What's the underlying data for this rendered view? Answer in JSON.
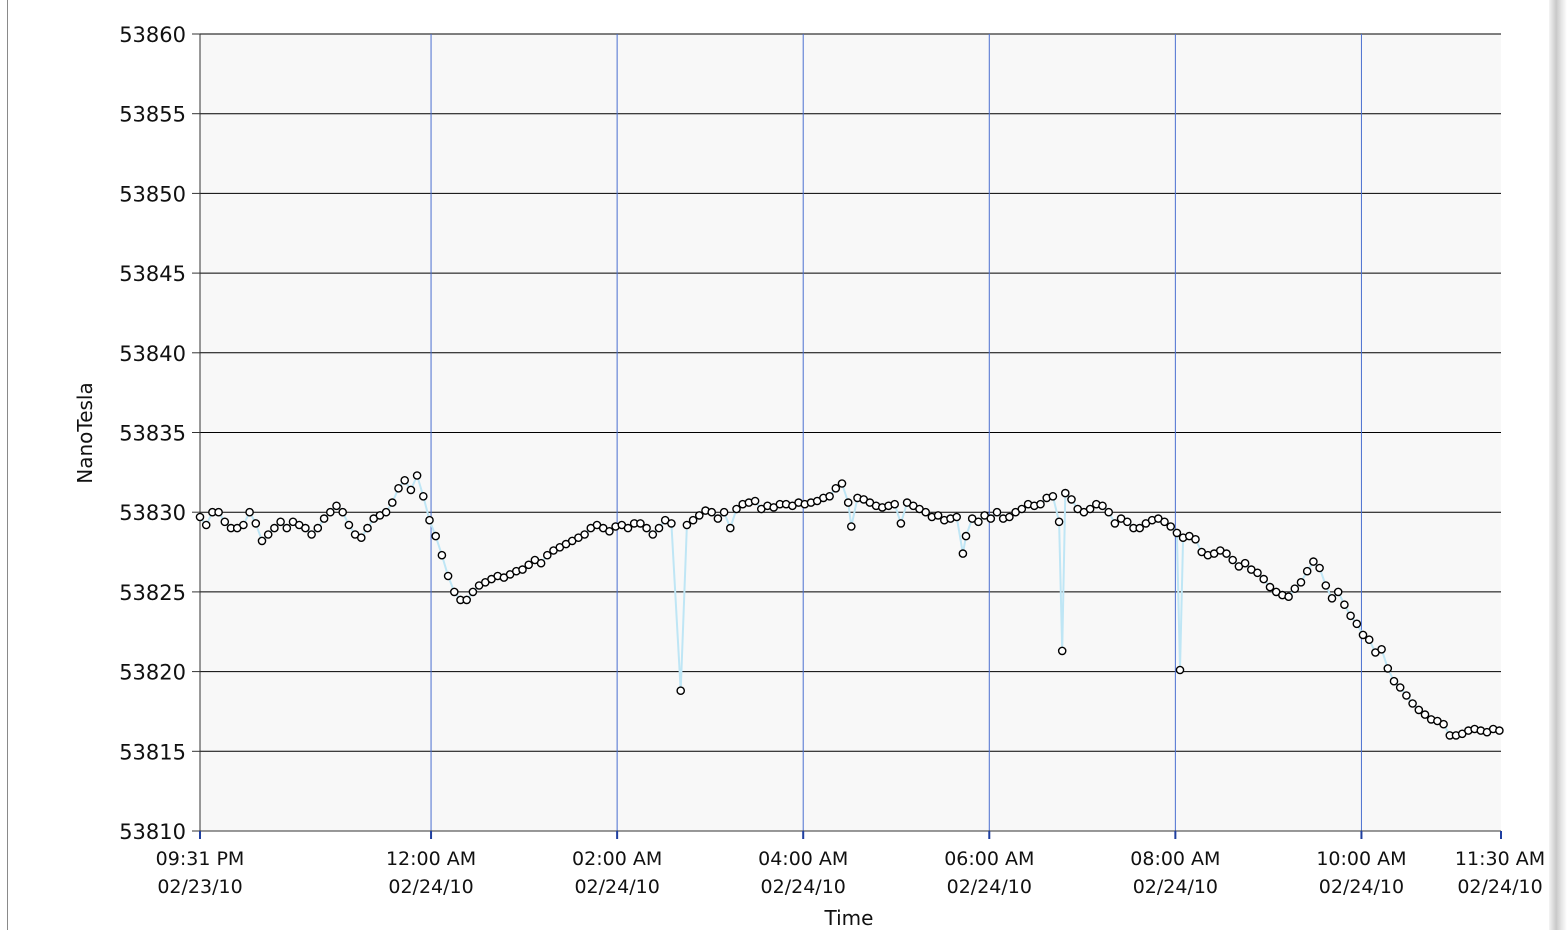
{
  "chart_data": {
    "type": "scatter",
    "title": "",
    "xlabel": "Time",
    "ylabel": "NanoTesla",
    "ylim": [
      53810,
      53860
    ],
    "y_ticks": [
      "53860",
      "53855",
      "53850",
      "53845",
      "53840",
      "53835",
      "53830",
      "53825",
      "53820",
      "53815",
      "53810"
    ],
    "xlim": [
      "2010-02-23 21:31",
      "2010-02-24 11:30"
    ],
    "x_ticks": [
      {
        "time": "2010-02-23 21:31",
        "label1": "09:31 PM",
        "label2": "02/23/10"
      },
      {
        "time": "2010-02-24 00:00",
        "label1": "12:00 AM",
        "label2": "02/24/10"
      },
      {
        "time": "2010-02-24 02:00",
        "label1": "02:00 AM",
        "label2": "02/24/10"
      },
      {
        "time": "2010-02-24 04:00",
        "label1": "04:00 AM",
        "label2": "02/24/10"
      },
      {
        "time": "2010-02-24 06:00",
        "label1": "06:00 AM",
        "label2": "02/24/10"
      },
      {
        "time": "2010-02-24 08:00",
        "label1": "08:00 AM",
        "label2": "02/24/10"
      },
      {
        "time": "2010-02-24 10:00",
        "label1": "10:00 AM",
        "label2": "02/24/10"
      },
      {
        "time": "2010-02-24 11:30",
        "label1": "11:30 AM",
        "label2": "02/24/10"
      }
    ],
    "grid": true,
    "colors": {
      "marker_edge": "#000000",
      "line": "#bfe6f5",
      "vgrid": "#4a6fd0",
      "hgrid": "#000000",
      "plot_bg": "#f8f8f8"
    },
    "series": [
      {
        "points": [
          [
            "2010-02-23 21:31",
            53829.7
          ],
          [
            "2010-02-23 21:35",
            53829.2
          ],
          [
            "2010-02-23 21:39",
            53830.0
          ],
          [
            "2010-02-23 21:43",
            53830.0
          ],
          [
            "2010-02-23 21:47",
            53829.4
          ],
          [
            "2010-02-23 21:51",
            53829.0
          ],
          [
            "2010-02-23 21:55",
            53829.0
          ],
          [
            "2010-02-23 21:59",
            53829.2
          ],
          [
            "2010-02-23 22:03",
            53830.0
          ],
          [
            "2010-02-23 22:07",
            53829.3
          ],
          [
            "2010-02-23 22:11",
            53828.2
          ],
          [
            "2010-02-23 22:15",
            53828.6
          ],
          [
            "2010-02-23 22:19",
            53829.0
          ],
          [
            "2010-02-23 22:23",
            53829.4
          ],
          [
            "2010-02-23 22:27",
            53829.0
          ],
          [
            "2010-02-23 22:31",
            53829.4
          ],
          [
            "2010-02-23 22:35",
            53829.2
          ],
          [
            "2010-02-23 22:39",
            53829.0
          ],
          [
            "2010-02-23 22:43",
            53828.6
          ],
          [
            "2010-02-23 22:47",
            53829.0
          ],
          [
            "2010-02-23 22:51",
            53829.6
          ],
          [
            "2010-02-23 22:55",
            53830.0
          ],
          [
            "2010-02-23 22:59",
            53830.4
          ],
          [
            "2010-02-23 23:03",
            53830.0
          ],
          [
            "2010-02-23 23:07",
            53829.2
          ],
          [
            "2010-02-23 23:11",
            53828.6
          ],
          [
            "2010-02-23 23:15",
            53828.4
          ],
          [
            "2010-02-23 23:19",
            53829.0
          ],
          [
            "2010-02-23 23:23",
            53829.6
          ],
          [
            "2010-02-23 23:27",
            53829.8
          ],
          [
            "2010-02-23 23:31",
            53830.0
          ],
          [
            "2010-02-23 23:35",
            53830.6
          ],
          [
            "2010-02-23 23:39",
            53831.5
          ],
          [
            "2010-02-23 23:43",
            53832.0
          ],
          [
            "2010-02-23 23:47",
            53831.4
          ],
          [
            "2010-02-23 23:51",
            53832.3
          ],
          [
            "2010-02-23 23:55",
            53831.0
          ],
          [
            "2010-02-23 23:59",
            53829.5
          ],
          [
            "2010-02-24 00:03",
            53828.5
          ],
          [
            "2010-02-24 00:07",
            53827.3
          ],
          [
            "2010-02-24 00:11",
            53826.0
          ],
          [
            "2010-02-24 00:15",
            53825.0
          ],
          [
            "2010-02-24 00:19",
            53824.5
          ],
          [
            "2010-02-24 00:23",
            53824.5
          ],
          [
            "2010-02-24 00:27",
            53825.0
          ],
          [
            "2010-02-24 00:31",
            53825.4
          ],
          [
            "2010-02-24 00:35",
            53825.6
          ],
          [
            "2010-02-24 00:39",
            53825.8
          ],
          [
            "2010-02-24 00:43",
            53826.0
          ],
          [
            "2010-02-24 00:47",
            53825.9
          ],
          [
            "2010-02-24 00:51",
            53826.1
          ],
          [
            "2010-02-24 00:55",
            53826.3
          ],
          [
            "2010-02-24 00:59",
            53826.4
          ],
          [
            "2010-02-24 01:03",
            53826.7
          ],
          [
            "2010-02-24 01:07",
            53827.0
          ],
          [
            "2010-02-24 01:11",
            53826.8
          ],
          [
            "2010-02-24 01:15",
            53827.3
          ],
          [
            "2010-02-24 01:19",
            53827.6
          ],
          [
            "2010-02-24 01:23",
            53827.8
          ],
          [
            "2010-02-24 01:27",
            53828.0
          ],
          [
            "2010-02-24 01:31",
            53828.2
          ],
          [
            "2010-02-24 01:35",
            53828.4
          ],
          [
            "2010-02-24 01:39",
            53828.6
          ],
          [
            "2010-02-24 01:43",
            53829.0
          ],
          [
            "2010-02-24 01:47",
            53829.2
          ],
          [
            "2010-02-24 01:51",
            53829.0
          ],
          [
            "2010-02-24 01:55",
            53828.8
          ],
          [
            "2010-02-24 01:59",
            53829.1
          ],
          [
            "2010-02-24 02:03",
            53829.2
          ],
          [
            "2010-02-24 02:07",
            53829.0
          ],
          [
            "2010-02-24 02:11",
            53829.3
          ],
          [
            "2010-02-24 02:15",
            53829.3
          ],
          [
            "2010-02-24 02:19",
            53829.0
          ],
          [
            "2010-02-24 02:23",
            53828.6
          ],
          [
            "2010-02-24 02:27",
            53829.0
          ],
          [
            "2010-02-24 02:31",
            53829.5
          ],
          [
            "2010-02-24 02:35",
            53829.3
          ],
          [
            "2010-02-24 02:41",
            53818.8
          ],
          [
            "2010-02-24 02:45",
            53829.2
          ],
          [
            "2010-02-24 02:49",
            53829.5
          ],
          [
            "2010-02-24 02:53",
            53829.8
          ],
          [
            "2010-02-24 02:57",
            53830.1
          ],
          [
            "2010-02-24 03:01",
            53830.0
          ],
          [
            "2010-02-24 03:05",
            53829.6
          ],
          [
            "2010-02-24 03:09",
            53830.0
          ],
          [
            "2010-02-24 03:13",
            53829.0
          ],
          [
            "2010-02-24 03:17",
            53830.2
          ],
          [
            "2010-02-24 03:21",
            53830.5
          ],
          [
            "2010-02-24 03:25",
            53830.6
          ],
          [
            "2010-02-24 03:29",
            53830.7
          ],
          [
            "2010-02-24 03:33",
            53830.2
          ],
          [
            "2010-02-24 03:37",
            53830.4
          ],
          [
            "2010-02-24 03:41",
            53830.3
          ],
          [
            "2010-02-24 03:45",
            53830.5
          ],
          [
            "2010-02-24 03:49",
            53830.5
          ],
          [
            "2010-02-24 03:53",
            53830.4
          ],
          [
            "2010-02-24 03:57",
            53830.6
          ],
          [
            "2010-02-24 04:01",
            53830.5
          ],
          [
            "2010-02-24 04:05",
            53830.6
          ],
          [
            "2010-02-24 04:09",
            53830.7
          ],
          [
            "2010-02-24 04:13",
            53830.9
          ],
          [
            "2010-02-24 04:17",
            53831.0
          ],
          [
            "2010-02-24 04:21",
            53831.5
          ],
          [
            "2010-02-24 04:25",
            53831.8
          ],
          [
            "2010-02-24 04:29",
            53830.6
          ],
          [
            "2010-02-24 04:31",
            53829.1
          ],
          [
            "2010-02-24 04:35",
            53830.9
          ],
          [
            "2010-02-24 04:39",
            53830.8
          ],
          [
            "2010-02-24 04:43",
            53830.6
          ],
          [
            "2010-02-24 04:47",
            53830.4
          ],
          [
            "2010-02-24 04:51",
            53830.3
          ],
          [
            "2010-02-24 04:55",
            53830.4
          ],
          [
            "2010-02-24 04:59",
            53830.5
          ],
          [
            "2010-02-24 05:03",
            53829.3
          ],
          [
            "2010-02-24 05:07",
            53830.6
          ],
          [
            "2010-02-24 05:11",
            53830.4
          ],
          [
            "2010-02-24 05:15",
            53830.2
          ],
          [
            "2010-02-24 05:19",
            53830.0
          ],
          [
            "2010-02-24 05:23",
            53829.7
          ],
          [
            "2010-02-24 05:27",
            53829.8
          ],
          [
            "2010-02-24 05:31",
            53829.5
          ],
          [
            "2010-02-24 05:35",
            53829.6
          ],
          [
            "2010-02-24 05:39",
            53829.7
          ],
          [
            "2010-02-24 05:43",
            53827.4
          ],
          [
            "2010-02-24 05:45",
            53828.5
          ],
          [
            "2010-02-24 05:49",
            53829.6
          ],
          [
            "2010-02-24 05:53",
            53829.4
          ],
          [
            "2010-02-24 05:57",
            53829.8
          ],
          [
            "2010-02-24 06:01",
            53829.6
          ],
          [
            "2010-02-24 06:05",
            53830.0
          ],
          [
            "2010-02-24 06:09",
            53829.6
          ],
          [
            "2010-02-24 06:13",
            53829.7
          ],
          [
            "2010-02-24 06:17",
            53830.0
          ],
          [
            "2010-02-24 06:21",
            53830.2
          ],
          [
            "2010-02-24 06:25",
            53830.5
          ],
          [
            "2010-02-24 06:29",
            53830.4
          ],
          [
            "2010-02-24 06:33",
            53830.5
          ],
          [
            "2010-02-24 06:37",
            53830.9
          ],
          [
            "2010-02-24 06:41",
            53831.0
          ],
          [
            "2010-02-24 06:45",
            53829.4
          ],
          [
            "2010-02-24 06:47",
            53821.3
          ],
          [
            "2010-02-24 06:49",
            53831.2
          ],
          [
            "2010-02-24 06:53",
            53830.8
          ],
          [
            "2010-02-24 06:57",
            53830.2
          ],
          [
            "2010-02-24 07:01",
            53830.0
          ],
          [
            "2010-02-24 07:05",
            53830.2
          ],
          [
            "2010-02-24 07:09",
            53830.5
          ],
          [
            "2010-02-24 07:13",
            53830.4
          ],
          [
            "2010-02-24 07:17",
            53830.0
          ],
          [
            "2010-02-24 07:21",
            53829.3
          ],
          [
            "2010-02-24 07:25",
            53829.6
          ],
          [
            "2010-02-24 07:29",
            53829.4
          ],
          [
            "2010-02-24 07:33",
            53829.0
          ],
          [
            "2010-02-24 07:37",
            53829.0
          ],
          [
            "2010-02-24 07:41",
            53829.3
          ],
          [
            "2010-02-24 07:45",
            53829.5
          ],
          [
            "2010-02-24 07:49",
            53829.6
          ],
          [
            "2010-02-24 07:53",
            53829.4
          ],
          [
            "2010-02-24 07:57",
            53829.1
          ],
          [
            "2010-02-24 08:01",
            53828.7
          ],
          [
            "2010-02-24 08:03",
            53820.1
          ],
          [
            "2010-02-24 08:05",
            53828.4
          ],
          [
            "2010-02-24 08:09",
            53828.5
          ],
          [
            "2010-02-24 08:13",
            53828.3
          ],
          [
            "2010-02-24 08:17",
            53827.5
          ],
          [
            "2010-02-24 08:21",
            53827.3
          ],
          [
            "2010-02-24 08:25",
            53827.4
          ],
          [
            "2010-02-24 08:29",
            53827.6
          ],
          [
            "2010-02-24 08:33",
            53827.4
          ],
          [
            "2010-02-24 08:37",
            53827.0
          ],
          [
            "2010-02-24 08:41",
            53826.6
          ],
          [
            "2010-02-24 08:45",
            53826.8
          ],
          [
            "2010-02-24 08:49",
            53826.4
          ],
          [
            "2010-02-24 08:53",
            53826.2
          ],
          [
            "2010-02-24 08:57",
            53825.8
          ],
          [
            "2010-02-24 09:01",
            53825.3
          ],
          [
            "2010-02-24 09:05",
            53825.0
          ],
          [
            "2010-02-24 09:09",
            53824.8
          ],
          [
            "2010-02-24 09:13",
            53824.7
          ],
          [
            "2010-02-24 09:17",
            53825.2
          ],
          [
            "2010-02-24 09:21",
            53825.6
          ],
          [
            "2010-02-24 09:25",
            53826.3
          ],
          [
            "2010-02-24 09:29",
            53826.9
          ],
          [
            "2010-02-24 09:33",
            53826.5
          ],
          [
            "2010-02-24 09:37",
            53825.4
          ],
          [
            "2010-02-24 09:41",
            53824.6
          ],
          [
            "2010-02-24 09:45",
            53825.0
          ],
          [
            "2010-02-24 09:49",
            53824.2
          ],
          [
            "2010-02-24 09:53",
            53823.5
          ],
          [
            "2010-02-24 09:57",
            53823.0
          ],
          [
            "2010-02-24 10:01",
            53822.3
          ],
          [
            "2010-02-24 10:05",
            53822.0
          ],
          [
            "2010-02-24 10:09",
            53821.2
          ],
          [
            "2010-02-24 10:13",
            53821.4
          ],
          [
            "2010-02-24 10:17",
            53820.2
          ],
          [
            "2010-02-24 10:21",
            53819.4
          ],
          [
            "2010-02-24 10:25",
            53819.0
          ],
          [
            "2010-02-24 10:29",
            53818.5
          ],
          [
            "2010-02-24 10:33",
            53818.0
          ],
          [
            "2010-02-24 10:37",
            53817.6
          ],
          [
            "2010-02-24 10:41",
            53817.3
          ],
          [
            "2010-02-24 10:45",
            53817.0
          ],
          [
            "2010-02-24 10:49",
            53816.9
          ],
          [
            "2010-02-24 10:53",
            53816.7
          ],
          [
            "2010-02-24 10:57",
            53816.0
          ],
          [
            "2010-02-24 11:01",
            53816.0
          ],
          [
            "2010-02-24 11:05",
            53816.1
          ],
          [
            "2010-02-24 11:09",
            53816.3
          ],
          [
            "2010-02-24 11:13",
            53816.4
          ],
          [
            "2010-02-24 11:17",
            53816.3
          ],
          [
            "2010-02-24 11:21",
            53816.2
          ],
          [
            "2010-02-24 11:25",
            53816.4
          ],
          [
            "2010-02-24 11:29",
            53816.3
          ]
        ]
      }
    ]
  }
}
